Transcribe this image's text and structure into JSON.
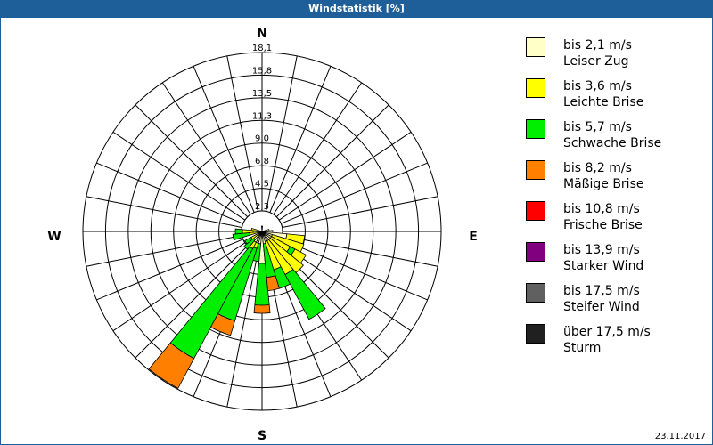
{
  "window": {
    "title": "Windstatistik [%]"
  },
  "footer": {
    "date": "23.11.2017"
  },
  "chart_data": {
    "type": "polar-bar (wind rose)",
    "title": "Windstatistik [%]",
    "directions": [
      "N",
      "E",
      "S",
      "W"
    ],
    "sectors": 32,
    "radial_unit": "%",
    "radial_ticks": [
      "2,3",
      "4,5",
      "6,8",
      "9,0",
      "11,3",
      "13,5",
      "15,8",
      "18,1"
    ],
    "rlim": [
      0,
      18.1
    ],
    "legend_position": "right",
    "legend": [
      {
        "line1": "bis 2,1 m/s",
        "line2": "Leiser Zug",
        "color": "#ffffc8"
      },
      {
        "line1": "bis 3,6 m/s",
        "line2": "Leichte Brise",
        "color": "#ffff00"
      },
      {
        "line1": "bis 5,7 m/s",
        "line2": "Schwache Brise",
        "color": "#00ee00"
      },
      {
        "line1": "bis 8,2 m/s",
        "line2": "Mäßige Brise",
        "color": "#ff8000"
      },
      {
        "line1": "bis 10,8 m/s",
        "line2": "Frische Brise",
        "color": "#ff0000"
      },
      {
        "line1": "bis 13,9 m/s",
        "line2": "Starker Wind",
        "color": "#800080"
      },
      {
        "line1": "bis 17,5 m/s",
        "line2": "Steifer Wind",
        "color": "#606060"
      },
      {
        "line1": "über 17,5 m/s",
        "line2": "Sturm",
        "color": "#202020"
      }
    ],
    "bars_px_note": "segment outer radii in px from center; angle in degrees clockwise from N",
    "bars": [
      {
        "angle": 213.75,
        "segments": [
          {
            "class": 0,
            "r": 14
          },
          {
            "class": 1,
            "r": 22
          },
          {
            "class": 2,
            "r": 162
          },
          {
            "class": 3,
            "r": 200
          }
        ]
      },
      {
        "angle": 202.5,
        "segments": [
          {
            "class": 0,
            "r": 14
          },
          {
            "class": 1,
            "r": 20
          },
          {
            "class": 2,
            "r": 105
          },
          {
            "class": 3,
            "r": 122
          }
        ]
      },
      {
        "angle": 191.25,
        "segments": [
          {
            "class": 0,
            "r": 14
          },
          {
            "class": 2,
            "r": 34
          }
        ]
      },
      {
        "angle": 180,
        "segments": [
          {
            "class": 0,
            "r": 36
          },
          {
            "class": 2,
            "r": 83
          },
          {
            "class": 3,
            "r": 92
          }
        ]
      },
      {
        "angle": 168.75,
        "segments": [
          {
            "class": 0,
            "r": 14
          },
          {
            "class": 2,
            "r": 52
          },
          {
            "class": 3,
            "r": 67
          }
        ]
      },
      {
        "angle": 157.5,
        "segments": [
          {
            "class": 0,
            "r": 12
          },
          {
            "class": 1,
            "r": 45
          },
          {
            "class": 2,
            "r": 67
          }
        ]
      },
      {
        "angle": 146.25,
        "segments": [
          {
            "class": 0,
            "r": 12
          },
          {
            "class": 1,
            "r": 55
          },
          {
            "class": 2,
            "r": 112
          }
        ]
      },
      {
        "angle": 135,
        "segments": [
          {
            "class": 0,
            "r": 12
          },
          {
            "class": 1,
            "r": 60
          }
        ]
      },
      {
        "angle": 123.75,
        "segments": [
          {
            "class": 0,
            "r": 12
          },
          {
            "class": 1,
            "r": 36
          },
          {
            "class": 2,
            "r": 42
          },
          {
            "class": 1,
            "r": 56
          }
        ]
      },
      {
        "angle": 112.5,
        "segments": [
          {
            "class": 0,
            "r": 12
          },
          {
            "class": 1,
            "r": 49
          }
        ]
      },
      {
        "angle": 101.25,
        "segments": [
          {
            "class": 0,
            "r": 28
          },
          {
            "class": 1,
            "r": 48
          }
        ]
      },
      {
        "angle": 225,
        "segments": [
          {
            "class": 0,
            "r": 12
          },
          {
            "class": 2,
            "r": 26
          }
        ]
      },
      {
        "angle": 236.25,
        "segments": [
          {
            "class": 1,
            "r": 14
          },
          {
            "class": 2,
            "r": 22
          }
        ]
      },
      {
        "angle": 258.75,
        "segments": [
          {
            "class": 1,
            "r": 14
          },
          {
            "class": 2,
            "r": 33
          }
        ]
      },
      {
        "angle": 270,
        "segments": [
          {
            "class": 0,
            "r": 10
          },
          {
            "class": 1,
            "r": 22
          },
          {
            "class": 2,
            "r": 30
          }
        ]
      },
      {
        "angle": 281.25,
        "segments": [
          {
            "class": 1,
            "r": 12
          }
        ]
      },
      {
        "angle": 90,
        "segments": [
          {
            "class": 0,
            "r": 12
          }
        ]
      },
      {
        "angle": 78.75,
        "segments": [
          {
            "class": 0,
            "r": 8
          }
        ]
      },
      {
        "angle": 0,
        "segments": [
          {
            "class": 7,
            "r": 6
          }
        ]
      }
    ]
  }
}
